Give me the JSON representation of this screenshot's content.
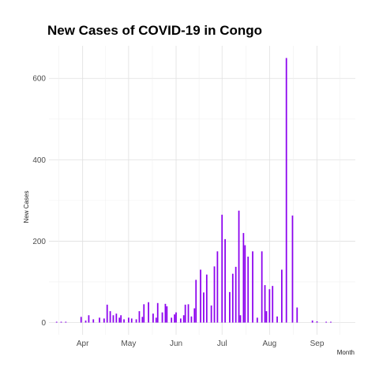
{
  "chart_data": {
    "type": "bar",
    "title": "New Cases of COVID-19 in Congo",
    "xlabel": "Month",
    "ylabel": "New Cases",
    "x_ticks": [
      "Apr",
      "May",
      "Jun",
      "Jul",
      "Aug",
      "Sep"
    ],
    "y_ticks": [
      0,
      200,
      400,
      600
    ],
    "ylim": [
      -30,
      680
    ],
    "xlim": [
      "2020-03-10",
      "2020-09-26"
    ],
    "grid": true,
    "legend": "none",
    "bar_color": "#8b00ee",
    "x": [
      "2020-03-15",
      "2020-03-18",
      "2020-03-21",
      "2020-03-31",
      "2020-04-03",
      "2020-04-05",
      "2020-04-08",
      "2020-04-12",
      "2020-04-15",
      "2020-04-17",
      "2020-04-19",
      "2020-04-21",
      "2020-04-23",
      "2020-04-25",
      "2020-04-26",
      "2020-04-28",
      "2020-05-01",
      "2020-05-03",
      "2020-05-06",
      "2020-05-08",
      "2020-05-10",
      "2020-05-11",
      "2020-05-14",
      "2020-05-17",
      "2020-05-19",
      "2020-05-20",
      "2020-05-23",
      "2020-05-25",
      "2020-05-26",
      "2020-05-29",
      "2020-05-31",
      "2020-06-01",
      "2020-06-04",
      "2020-06-06",
      "2020-06-07",
      "2020-06-09",
      "2020-06-11",
      "2020-06-13",
      "2020-06-14",
      "2020-06-17",
      "2020-06-19",
      "2020-06-21",
      "2020-06-24",
      "2020-06-26",
      "2020-06-28",
      "2020-07-01",
      "2020-07-03",
      "2020-07-06",
      "2020-07-08",
      "2020-07-10",
      "2020-07-12",
      "2020-07-13",
      "2020-07-15",
      "2020-07-16",
      "2020-07-18",
      "2020-07-21",
      "2020-07-24",
      "2020-07-27",
      "2020-07-29",
      "2020-07-30",
      "2020-08-01",
      "2020-08-03",
      "2020-08-06",
      "2020-08-09",
      "2020-08-12",
      "2020-08-16",
      "2020-08-19",
      "2020-08-29",
      "2020-09-01",
      "2020-09-07",
      "2020-09-10"
    ],
    "values": [
      2,
      2,
      2,
      14,
      5,
      18,
      8,
      12,
      10,
      44,
      28,
      18,
      22,
      12,
      18,
      8,
      12,
      10,
      8,
      28,
      14,
      45,
      50,
      22,
      12,
      48,
      25,
      46,
      40,
      12,
      20,
      25,
      10,
      18,
      44,
      45,
      15,
      35,
      105,
      130,
      74,
      118,
      42,
      138,
      175,
      265,
      205,
      75,
      120,
      137,
      275,
      18,
      220,
      190,
      162,
      175,
      12,
      175,
      92,
      28,
      82,
      90,
      15,
      130,
      650,
      263,
      37,
      5,
      3,
      2,
      2
    ]
  }
}
